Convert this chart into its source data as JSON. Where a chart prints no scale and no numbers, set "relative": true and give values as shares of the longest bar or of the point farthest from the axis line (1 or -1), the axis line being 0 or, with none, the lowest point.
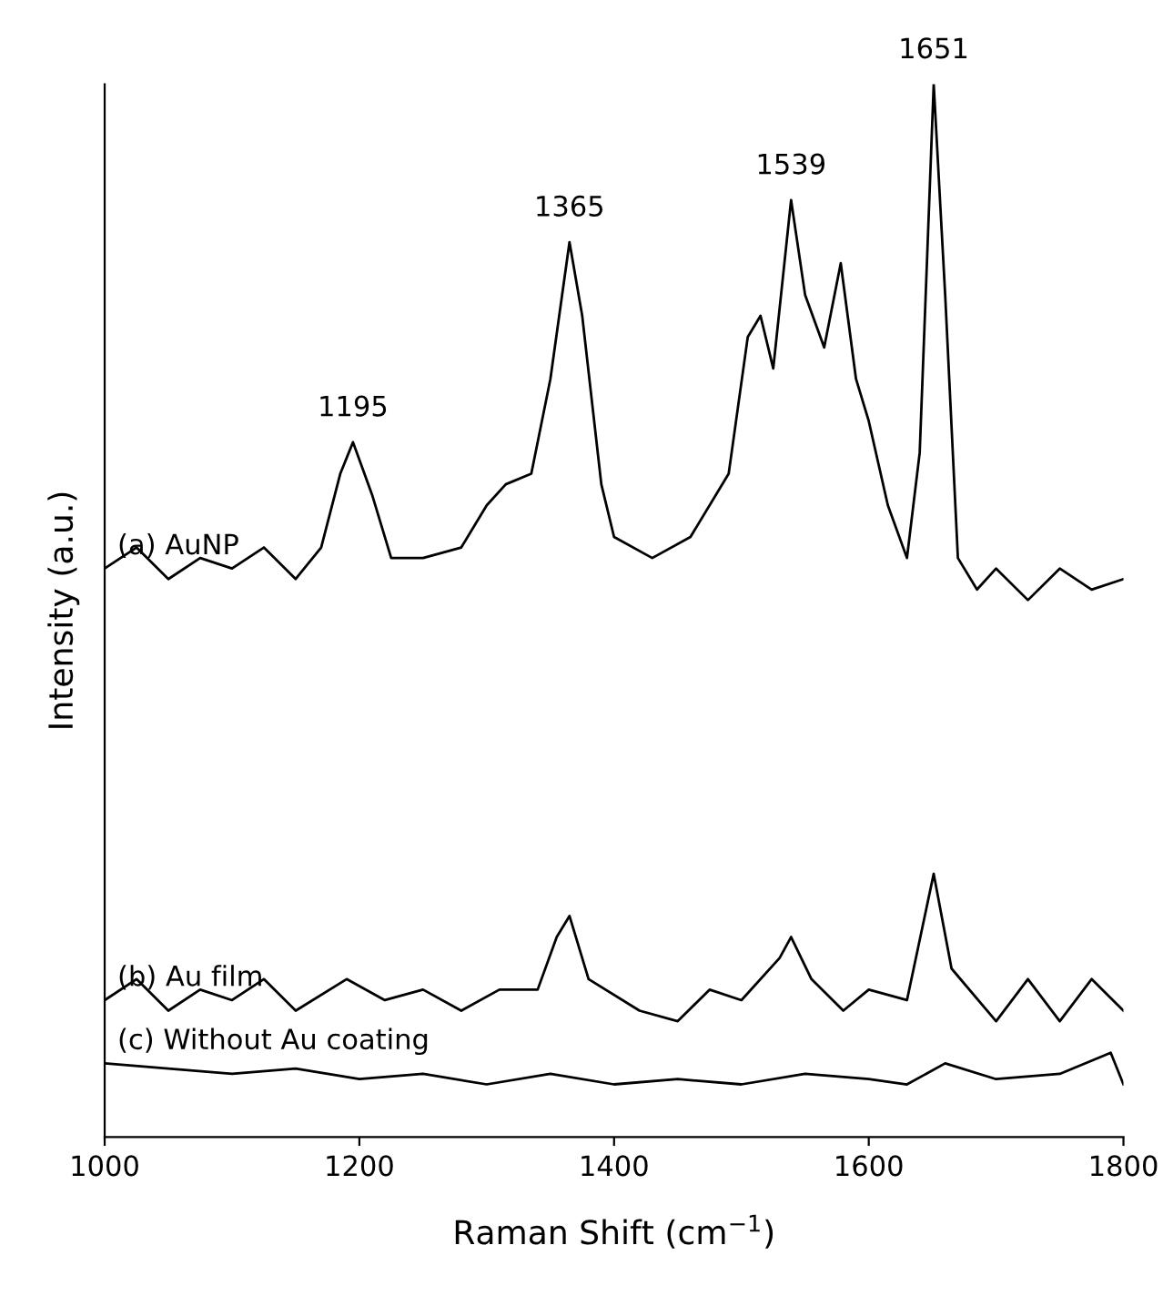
{
  "chart_data": {
    "type": "line",
    "relative": true,
    "xlabel": "Raman Shift (cm$^{−1}$)",
    "ylabel": "Intensity (a.u.)",
    "xlim": [
      1000,
      1800
    ],
    "xticks": [
      1000,
      1200,
      1400,
      1600,
      1800
    ],
    "grid": false,
    "legend": false,
    "marker": "none",
    "line_style": "solid",
    "series": [
      {
        "name": "(a) AuNP",
        "color": "#000000",
        "x": [
          1000,
          1025,
          1050,
          1075,
          1100,
          1125,
          1150,
          1170,
          1185,
          1195,
          1210,
          1225,
          1250,
          1280,
          1300,
          1315,
          1335,
          1350,
          1365,
          1375,
          1390,
          1400,
          1430,
          1460,
          1490,
          1505,
          1515,
          1525,
          1539,
          1550,
          1565,
          1578,
          1590,
          1600,
          1615,
          1630,
          1640,
          1651,
          1660,
          1670,
          1685,
          1700,
          1725,
          1750,
          1775,
          1800
        ],
        "values": [
          0.54,
          0.56,
          0.53,
          0.55,
          0.54,
          0.56,
          0.53,
          0.56,
          0.63,
          0.66,
          0.61,
          0.55,
          0.55,
          0.56,
          0.6,
          0.62,
          0.63,
          0.72,
          0.85,
          0.78,
          0.62,
          0.57,
          0.55,
          0.57,
          0.63,
          0.76,
          0.78,
          0.73,
          0.89,
          0.8,
          0.75,
          0.83,
          0.72,
          0.68,
          0.6,
          0.55,
          0.65,
          1.0,
          0.8,
          0.55,
          0.52,
          0.54,
          0.51,
          0.54,
          0.52,
          0.53
        ]
      },
      {
        "name": "(b) Au film",
        "color": "#000000",
        "x": [
          1000,
          1025,
          1050,
          1075,
          1100,
          1125,
          1150,
          1190,
          1220,
          1250,
          1280,
          1310,
          1340,
          1355,
          1365,
          1380,
          1420,
          1450,
          1475,
          1500,
          1530,
          1539,
          1555,
          1580,
          1600,
          1630,
          1651,
          1665,
          1700,
          1725,
          1750,
          1775,
          1800
        ],
        "values": [
          0.13,
          0.15,
          0.12,
          0.14,
          0.13,
          0.15,
          0.12,
          0.15,
          0.13,
          0.14,
          0.12,
          0.14,
          0.14,
          0.19,
          0.21,
          0.15,
          0.12,
          0.11,
          0.14,
          0.13,
          0.17,
          0.19,
          0.15,
          0.12,
          0.14,
          0.13,
          0.25,
          0.16,
          0.11,
          0.15,
          0.11,
          0.15,
          0.12
        ]
      },
      {
        "name": "(c) Without Au coating",
        "color": "#000000",
        "x": [
          1000,
          1050,
          1100,
          1150,
          1200,
          1250,
          1300,
          1350,
          1400,
          1450,
          1500,
          1550,
          1600,
          1630,
          1660,
          1700,
          1750,
          1790,
          1800
        ],
        "values": [
          0.07,
          0.065,
          0.06,
          0.065,
          0.055,
          0.06,
          0.05,
          0.06,
          0.05,
          0.055,
          0.05,
          0.06,
          0.055,
          0.05,
          0.07,
          0.055,
          0.06,
          0.08,
          0.05
        ]
      }
    ],
    "annotations": [
      {
        "text": "1195",
        "x": 1195,
        "y": 0.66
      },
      {
        "text": "1365",
        "x": 1365,
        "y": 0.85
      },
      {
        "text": "1539",
        "x": 1539,
        "y": 0.89
      },
      {
        "text": "1651",
        "x": 1651,
        "y": 1.0
      }
    ]
  }
}
